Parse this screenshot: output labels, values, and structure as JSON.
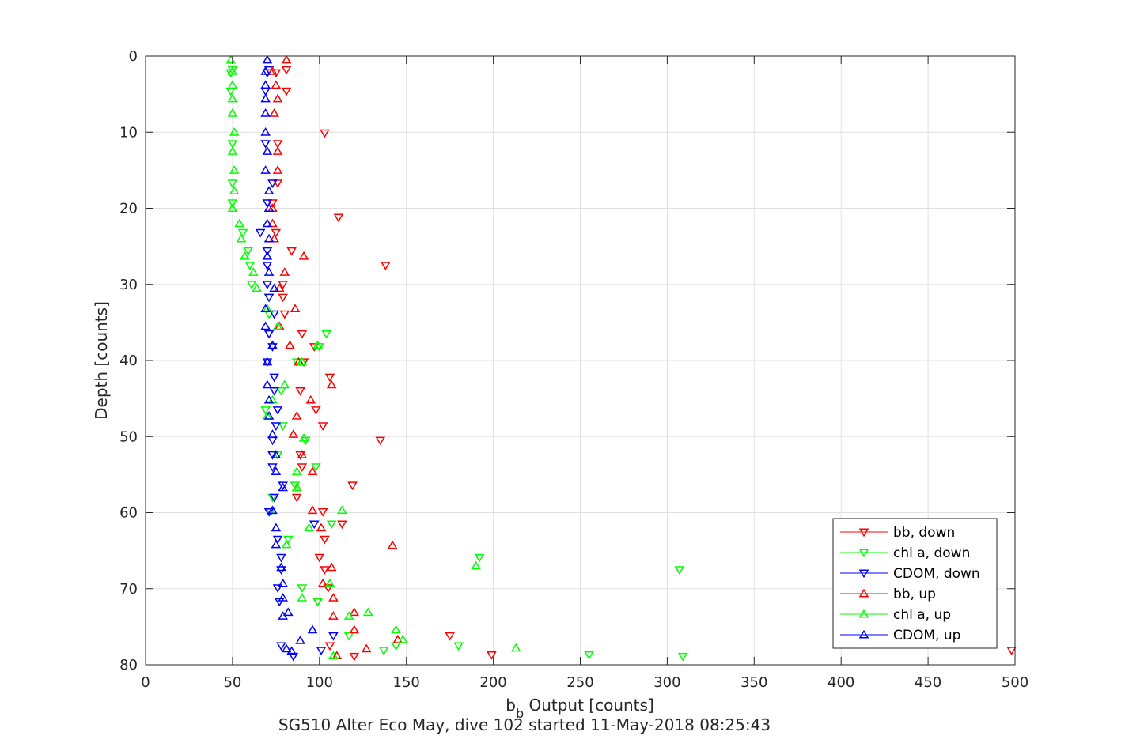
{
  "chart_data": {
    "type": "scatter",
    "title": "SG510 Alter Eco May, dive 102 started 11-May-2018 08:25:43",
    "xlabel": {
      "main": "b",
      "sub": "b",
      "rest": " Output [counts]"
    },
    "ylabel": "Depth [counts]",
    "xlim": [
      0,
      500
    ],
    "ylim": [
      80,
      0
    ],
    "y_reversed": true,
    "grid": true,
    "xticks": [
      0,
      50,
      100,
      150,
      200,
      250,
      300,
      350,
      400,
      450,
      500
    ],
    "yticks": [
      0,
      10,
      20,
      30,
      40,
      50,
      60,
      70,
      80
    ],
    "legend_position": "bottom-right",
    "series": [
      {
        "name": "bb, down",
        "color": "#ff0000",
        "marker": "triangle-down",
        "points": [
          [
            81,
            1.8
          ],
          [
            75,
            2.2
          ],
          [
            81,
            4.6
          ],
          [
            103,
            10.1
          ],
          [
            76,
            11.5
          ],
          [
            76,
            16.7
          ],
          [
            73,
            19.3
          ],
          [
            111,
            21.2
          ],
          [
            75,
            23.2
          ],
          [
            84,
            25.6
          ],
          [
            138,
            27.5
          ],
          [
            79,
            30.0
          ],
          [
            79,
            31.7
          ],
          [
            80,
            33.9
          ],
          [
            90,
            36.5
          ],
          [
            97,
            38.2
          ],
          [
            91,
            40.2
          ],
          [
            106,
            42.2
          ],
          [
            89,
            44.0
          ],
          [
            98,
            46.5
          ],
          [
            102,
            48.6
          ],
          [
            135,
            50.5
          ],
          [
            89,
            52.4
          ],
          [
            90,
            54.0
          ],
          [
            119,
            56.4
          ],
          [
            87,
            58.0
          ],
          [
            102,
            59.9
          ],
          [
            113,
            61.5
          ],
          [
            103,
            63.5
          ],
          [
            100,
            65.9
          ],
          [
            103,
            67.5
          ],
          [
            105,
            69.9
          ],
          [
            99,
            71.7
          ],
          [
            106,
            77.5
          ],
          [
            120,
            78.9
          ],
          [
            175,
            76.2
          ],
          [
            199,
            78.7
          ],
          [
            498,
            78.1
          ]
        ]
      },
      {
        "name": "chl a, down",
        "color": "#00ff00",
        "marker": "triangle-down",
        "points": [
          [
            50,
            1.8
          ],
          [
            49,
            2.2
          ],
          [
            49,
            4.6
          ],
          [
            50,
            11.5
          ],
          [
            50,
            16.7
          ],
          [
            50,
            19.3
          ],
          [
            56,
            23.2
          ],
          [
            59,
            25.6
          ],
          [
            60,
            27.5
          ],
          [
            61,
            30.0
          ],
          [
            71,
            31.7
          ],
          [
            71,
            33.9
          ],
          [
            104,
            36.5
          ],
          [
            100,
            38.2
          ],
          [
            87,
            40.2
          ],
          [
            78,
            44.0
          ],
          [
            69,
            46.5
          ],
          [
            79,
            48.6
          ],
          [
            92,
            50.5
          ],
          [
            76,
            52.4
          ],
          [
            98,
            54.0
          ],
          [
            86,
            56.4
          ],
          [
            73,
            58.0
          ],
          [
            72,
            59.9
          ],
          [
            107,
            61.5
          ],
          [
            82,
            63.5
          ],
          [
            192,
            65.9
          ],
          [
            307,
            67.5
          ],
          [
            90,
            69.9
          ],
          [
            99,
            71.7
          ],
          [
            117,
            76.2
          ],
          [
            144,
            77.5
          ],
          [
            137,
            78.1
          ],
          [
            180,
            77.5
          ],
          [
            255,
            78.7
          ],
          [
            309,
            78.9
          ]
        ]
      },
      {
        "name": "CDOM, down",
        "color": "#0000ff",
        "marker": "triangle-down",
        "points": [
          [
            71,
            1.8
          ],
          [
            70,
            2.2
          ],
          [
            69,
            4.6
          ],
          [
            69,
            11.5
          ],
          [
            73,
            16.7
          ],
          [
            70,
            19.3
          ],
          [
            66,
            23.2
          ],
          [
            70,
            25.6
          ],
          [
            70,
            27.5
          ],
          [
            70,
            30.0
          ],
          [
            71,
            31.7
          ],
          [
            74,
            33.9
          ],
          [
            71,
            36.5
          ],
          [
            73,
            38.2
          ],
          [
            70,
            40.2
          ],
          [
            74,
            42.2
          ],
          [
            74,
            44.0
          ],
          [
            76,
            46.5
          ],
          [
            75,
            48.6
          ],
          [
            73,
            50.5
          ],
          [
            73,
            52.4
          ],
          [
            73,
            54.0
          ],
          [
            79,
            56.4
          ],
          [
            74,
            58.0
          ],
          [
            71,
            59.9
          ],
          [
            97,
            61.5
          ],
          [
            76,
            63.5
          ],
          [
            78,
            65.9
          ],
          [
            78,
            67.5
          ],
          [
            76,
            69.9
          ],
          [
            77,
            71.7
          ],
          [
            108,
            76.2
          ],
          [
            101,
            78.1
          ],
          [
            78,
            77.5
          ],
          [
            85,
            78.9
          ]
        ]
      },
      {
        "name": "bb, up",
        "color": "#ff0000",
        "marker": "triangle-up",
        "points": [
          [
            81,
            0.5
          ],
          [
            73,
            2.0
          ],
          [
            75,
            3.8
          ],
          [
            76,
            5.6
          ],
          [
            74,
            7.5
          ],
          [
            76,
            12.5
          ],
          [
            76,
            15.0
          ],
          [
            73,
            20.0
          ],
          [
            73,
            22.0
          ],
          [
            74,
            24.0
          ],
          [
            91,
            26.3
          ],
          [
            80,
            28.4
          ],
          [
            77,
            30.5
          ],
          [
            86,
            33.2
          ],
          [
            77,
            35.5
          ],
          [
            83,
            38.0
          ],
          [
            88,
            40.2
          ],
          [
            107,
            43.2
          ],
          [
            95,
            45.2
          ],
          [
            87,
            47.3
          ],
          [
            85,
            49.7
          ],
          [
            90,
            52.4
          ],
          [
            96,
            54.6
          ],
          [
            87,
            56.7
          ],
          [
            96,
            59.7
          ],
          [
            101,
            62.0
          ],
          [
            142,
            64.3
          ],
          [
            107,
            67.2
          ],
          [
            102,
            69.3
          ],
          [
            108,
            71.2
          ],
          [
            120,
            73.1
          ],
          [
            108,
            73.6
          ],
          [
            120,
            75.4
          ],
          [
            145,
            76.7
          ],
          [
            127,
            77.9
          ],
          [
            110,
            78.8
          ]
        ]
      },
      {
        "name": "chl a, up",
        "color": "#00ff00",
        "marker": "triangle-up",
        "points": [
          [
            49,
            0.5
          ],
          [
            50,
            2.0
          ],
          [
            50,
            3.8
          ],
          [
            50,
            5.6
          ],
          [
            50,
            7.5
          ],
          [
            51,
            10.0
          ],
          [
            50,
            12.5
          ],
          [
            51,
            15.0
          ],
          [
            51,
            17.7
          ],
          [
            50,
            20.0
          ],
          [
            54,
            22.0
          ],
          [
            55,
            24.0
          ],
          [
            57,
            26.3
          ],
          [
            62,
            28.4
          ],
          [
            64,
            30.5
          ],
          [
            70,
            33.2
          ],
          [
            76,
            35.5
          ],
          [
            99,
            38.0
          ],
          [
            90,
            40.2
          ],
          [
            80,
            43.2
          ],
          [
            73,
            45.2
          ],
          [
            70,
            47.3
          ],
          [
            91,
            50.2
          ],
          [
            87,
            54.6
          ],
          [
            87,
            56.7
          ],
          [
            113,
            59.7
          ],
          [
            94,
            62.0
          ],
          [
            81,
            64.2
          ],
          [
            190,
            67.0
          ],
          [
            106,
            69.3
          ],
          [
            90,
            71.2
          ],
          [
            128,
            73.1
          ],
          [
            117,
            73.6
          ],
          [
            144,
            75.4
          ],
          [
            148,
            76.7
          ],
          [
            213,
            77.8
          ],
          [
            108,
            78.8
          ]
        ]
      },
      {
        "name": "CDOM, up",
        "color": "#0000ff",
        "marker": "triangle-up",
        "points": [
          [
            70,
            0.5
          ],
          [
            69,
            2.0
          ],
          [
            69,
            3.8
          ],
          [
            69,
            5.6
          ],
          [
            69,
            7.5
          ],
          [
            69,
            10.0
          ],
          [
            70,
            12.5
          ],
          [
            69,
            15.0
          ],
          [
            71,
            17.7
          ],
          [
            71,
            20.0
          ],
          [
            70,
            22.0
          ],
          [
            71,
            24.0
          ],
          [
            70,
            26.3
          ],
          [
            71,
            28.4
          ],
          [
            74,
            30.5
          ],
          [
            69,
            33.2
          ],
          [
            69,
            35.5
          ],
          [
            73,
            38.0
          ],
          [
            70,
            40.2
          ],
          [
            70,
            43.2
          ],
          [
            71,
            45.2
          ],
          [
            71,
            47.3
          ],
          [
            73,
            49.7
          ],
          [
            75,
            52.4
          ],
          [
            75,
            54.6
          ],
          [
            79,
            56.7
          ],
          [
            73,
            59.7
          ],
          [
            75,
            62.0
          ],
          [
            75,
            64.2
          ],
          [
            78,
            67.2
          ],
          [
            79,
            69.3
          ],
          [
            79,
            71.2
          ],
          [
            82,
            73.1
          ],
          [
            79,
            73.6
          ],
          [
            96,
            75.4
          ],
          [
            89,
            76.8
          ],
          [
            81,
            77.9
          ],
          [
            84,
            78.2
          ]
        ]
      }
    ]
  }
}
